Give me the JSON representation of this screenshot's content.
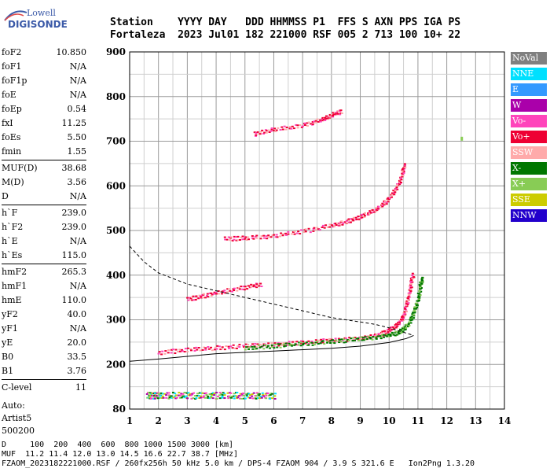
{
  "logo": {
    "top": "Lowell",
    "main": "DIGISONDE"
  },
  "header": {
    "line1": "Station    YYYY DAY   DDD HHMMSS P1  FFS S AXN PPS IGA PS",
    "line2": "Fortaleza  2023 Jul01 182 221000 RSF 005 2 713 100 10+ 22"
  },
  "params": {
    "group1": [
      {
        "name": "foF2",
        "value": "10.850"
      },
      {
        "name": "foF1",
        "value": "N/A"
      },
      {
        "name": "foF1p",
        "value": "N/A"
      },
      {
        "name": "foE",
        "value": "N/A"
      },
      {
        "name": "foEp",
        "value": "0.54"
      },
      {
        "name": "fxI",
        "value": "11.25"
      },
      {
        "name": "foEs",
        "value": "5.50"
      },
      {
        "name": "fmin",
        "value": "1.55"
      }
    ],
    "group2": [
      {
        "name": "MUF(D)",
        "value": "38.68"
      },
      {
        "name": "M(D)",
        "value": "3.56"
      },
      {
        "name": "D",
        "value": "N/A"
      }
    ],
    "group3": [
      {
        "name": "h`F",
        "value": "239.0"
      },
      {
        "name": "h`F2",
        "value": "239.0"
      },
      {
        "name": "h`E",
        "value": "N/A"
      },
      {
        "name": "h`Es",
        "value": "115.0"
      }
    ],
    "group4": [
      {
        "name": "hmF2",
        "value": "265.3"
      },
      {
        "name": "hmF1",
        "value": "N/A"
      },
      {
        "name": "hmE",
        "value": "110.0"
      },
      {
        "name": "yF2",
        "value": "40.0"
      },
      {
        "name": "yF1",
        "value": "N/A"
      },
      {
        "name": "yE",
        "value": "20.0"
      },
      {
        "name": "B0",
        "value": "33.5"
      },
      {
        "name": "B1",
        "value": "3.76"
      }
    ],
    "group5": [
      {
        "name": "C-level",
        "value": "11"
      }
    ],
    "auto": [
      "Auto:",
      "Artist5",
      "500200"
    ]
  },
  "legend": [
    {
      "label": "NoVal",
      "bg": "#808080",
      "fg": "#ffffff"
    },
    {
      "label": "NNE",
      "bg": "#00e0ff",
      "fg": "#ffffff"
    },
    {
      "label": "E",
      "bg": "#3399ff",
      "fg": "#ffffff"
    },
    {
      "label": "W",
      "bg": "#aa00aa",
      "fg": "#ffffff"
    },
    {
      "label": "Vo-",
      "bg": "#ff44bb",
      "fg": "#ffffff"
    },
    {
      "label": "Vo+",
      "bg": "#ee0033",
      "fg": "#ffffff"
    },
    {
      "label": "SSW",
      "bg": "#ffaaaa",
      "fg": "#ffffff"
    },
    {
      "label": "X-",
      "bg": "#007700",
      "fg": "#ffffff"
    },
    {
      "label": "X+",
      "bg": "#88cc55",
      "fg": "#ffffff"
    },
    {
      "label": "SSE",
      "bg": "#cccc00",
      "fg": "#ffffff"
    },
    {
      "label": "NNW",
      "bg": "#2200cc",
      "fg": "#ffffff"
    }
  ],
  "chart_data": {
    "type": "scatter",
    "xlim": [
      1,
      14
    ],
    "ylim": [
      80,
      900
    ],
    "x_ticks": [
      1,
      2,
      3,
      4,
      5,
      6,
      7,
      8,
      9,
      10,
      11,
      12,
      13,
      14
    ],
    "y_ticks": [
      80,
      200,
      300,
      400,
      500,
      600,
      700,
      800,
      900
    ],
    "grid": true,
    "ionogram_traces": [
      {
        "name": "O-trace F2",
        "points": [
          [
            2.0,
            225
          ],
          [
            3.0,
            232
          ],
          [
            4.0,
            236
          ],
          [
            5.0,
            240
          ],
          [
            6.0,
            244
          ],
          [
            7.0,
            248
          ],
          [
            8.0,
            253
          ],
          [
            9.0,
            258
          ],
          [
            9.6,
            264
          ],
          [
            10.0,
            275
          ],
          [
            10.3,
            290
          ],
          [
            10.5,
            310
          ],
          [
            10.6,
            340
          ],
          [
            10.7,
            370
          ],
          [
            10.8,
            400
          ]
        ]
      },
      {
        "name": "X-trace F2",
        "points": [
          [
            5.0,
            236
          ],
          [
            6.0,
            240
          ],
          [
            7.0,
            245
          ],
          [
            8.0,
            250
          ],
          [
            9.0,
            256
          ],
          [
            9.8,
            262
          ],
          [
            10.3,
            270
          ],
          [
            10.6,
            285
          ],
          [
            10.8,
            310
          ],
          [
            10.95,
            340
          ],
          [
            11.05,
            370
          ],
          [
            11.1,
            392
          ]
        ]
      },
      {
        "name": "Multiple echo 2F",
        "points": [
          [
            4.3,
            480
          ],
          [
            5.0,
            482
          ],
          [
            6.0,
            487
          ],
          [
            7.0,
            497
          ],
          [
            8.0,
            510
          ],
          [
            8.5,
            518
          ],
          [
            9.0,
            530
          ],
          [
            9.5,
            545
          ],
          [
            9.9,
            565
          ],
          [
            10.2,
            590
          ],
          [
            10.4,
            620
          ],
          [
            10.5,
            645
          ]
        ]
      },
      {
        "name": "Multiple echo 3F",
        "points": [
          [
            5.3,
            715
          ],
          [
            6.0,
            725
          ],
          [
            7.0,
            735
          ],
          [
            7.7,
            748
          ],
          [
            8.0,
            758
          ],
          [
            8.3,
            765
          ]
        ]
      },
      {
        "name": "Es trace",
        "points": [
          [
            1.6,
            118
          ],
          [
            2.0,
            118
          ],
          [
            3.0,
            118
          ],
          [
            4.0,
            118
          ],
          [
            5.0,
            118
          ],
          [
            6.0,
            118
          ]
        ]
      },
      {
        "name": "Spread",
        "points": [
          [
            3.0,
            345
          ],
          [
            3.5,
            352
          ],
          [
            4.2,
            362
          ],
          [
            5.0,
            372
          ],
          [
            5.5,
            378
          ]
        ]
      }
    ],
    "profile_dashed": [
      [
        1.0,
        465
      ],
      [
        1.5,
        430
      ],
      [
        2.0,
        405
      ],
      [
        3.0,
        380
      ],
      [
        4.0,
        365
      ],
      [
        5.0,
        350
      ],
      [
        6.0,
        335
      ],
      [
        7.0,
        320
      ],
      [
        8.0,
        305
      ],
      [
        9.0,
        295
      ],
      [
        9.5,
        290
      ],
      [
        10.0,
        282
      ],
      [
        10.6,
        270
      ],
      [
        10.85,
        265
      ]
    ],
    "profile_solid": [
      [
        10.85,
        265
      ],
      [
        10.6,
        258
      ],
      [
        10.0,
        249
      ],
      [
        9.0,
        241
      ],
      [
        8.0,
        236
      ],
      [
        6.0,
        230
      ],
      [
        4.0,
        224
      ],
      [
        2.0,
        212
      ],
      [
        1.0,
        207
      ]
    ]
  },
  "footer": {
    "line1": "D     100  200  400  600  800 1000 1500 3000 [km]",
    "line2": "MUF  11.2 11.4 12.0 13.0 14.5 16.6 22.7 38.7 [MHz]",
    "line3": "FZAOM_2023182221000.RSF / 260fx256h 50 kHz 5.0 km / DPS-4 FZAOM 904 / 3.9 S 321.6 E   Ion2Png 1.3.20"
  }
}
